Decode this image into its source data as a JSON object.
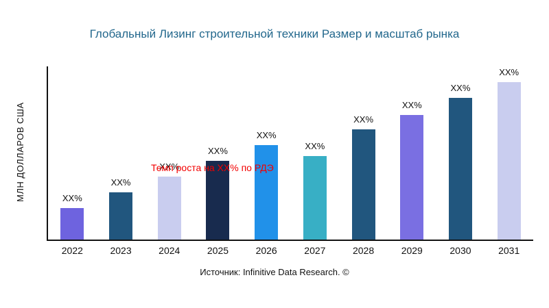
{
  "title": "Глобальный Лизинг строительной техники Размер и масштаб рынка",
  "growth_note": "Темп роста на XX% по РДЭ",
  "source": "Источник: Infinitive Data Research. ©",
  "colors": {
    "title": "#22678C",
    "growth_note": "#F20000",
    "axis": "#111111",
    "background": "#ffffff"
  },
  "chart_data": {
    "type": "bar",
    "title": "Глобальный Лизинг строительной техники Размер и масштаб рынка",
    "xlabel": "",
    "ylabel": "МЛН ДОЛЛАРОВ США",
    "categories": [
      "2022",
      "2023",
      "2024",
      "2025",
      "2026",
      "2027",
      "2028",
      "2029",
      "2030",
      "2031"
    ],
    "values": [
      20,
      30,
      40,
      50,
      60,
      53,
      70,
      79,
      90,
      100
    ],
    "value_labels": [
      "XX%",
      "XX%",
      "XX%",
      "XX%",
      "XX%",
      "XX%",
      "XX%",
      "XX%",
      "XX%",
      "XX%"
    ],
    "bar_colors": [
      "#6E63DF",
      "#21567E",
      "#C9CDEF",
      "#182B4E",
      "#2191E9",
      "#38AFC5",
      "#21567E",
      "#7A6FE2",
      "#21567E",
      "#C9CDEF"
    ],
    "ylim": [
      0,
      100
    ],
    "grid": false,
    "legend": "none",
    "annotations": [
      "Темп роста на XX% по РДЭ"
    ],
    "note": "Axis has no numeric tick labels; values are relative bar heights (0-100 scale)."
  }
}
